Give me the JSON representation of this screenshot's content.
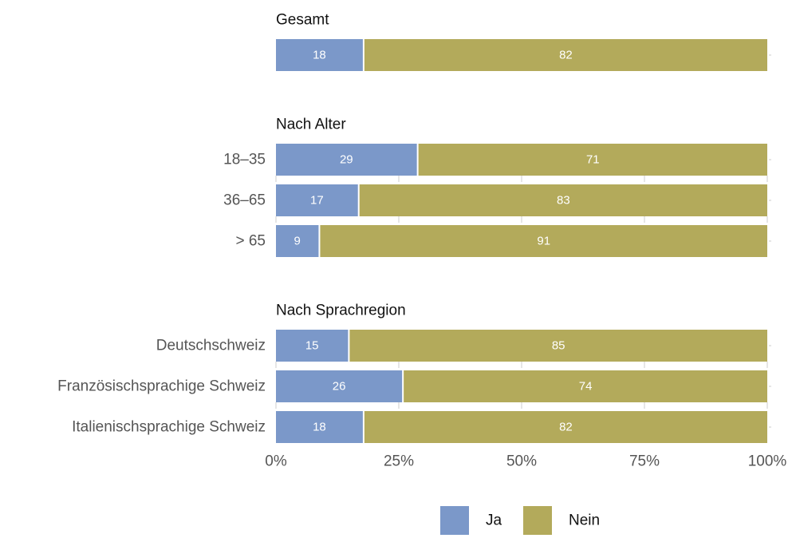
{
  "chart_data": {
    "type": "bar",
    "orientation": "horizontal",
    "stacked": true,
    "percent_axis": true,
    "xlim": [
      0,
      100
    ],
    "x_ticks": [
      "0%",
      "25%",
      "50%",
      "75%",
      "100%"
    ],
    "grid": false,
    "legend_position": "bottom",
    "series": [
      {
        "name": "Ja",
        "color": "#7b98c9"
      },
      {
        "name": "Nein",
        "color": "#b3aa5b"
      }
    ],
    "groups": [
      {
        "title": "Gesamt",
        "rows": [
          {
            "label": "",
            "values": [
              18,
              82
            ]
          }
        ]
      },
      {
        "title": "Nach Alter",
        "rows": [
          {
            "label": "18–35",
            "values": [
              29,
              71
            ]
          },
          {
            "label": "36–65",
            "values": [
              17,
              83
            ]
          },
          {
            "label": "> 65",
            "values": [
              9,
              91
            ]
          }
        ]
      },
      {
        "title": "Nach Sprachregion",
        "rows": [
          {
            "label": "Deutschschweiz",
            "values": [
              15,
              85
            ]
          },
          {
            "label": "Französischsprachige Schweiz",
            "values": [
              26,
              74
            ]
          },
          {
            "label": "Italienischsprachige Schweiz",
            "values": [
              18,
              82
            ]
          }
        ]
      }
    ]
  }
}
